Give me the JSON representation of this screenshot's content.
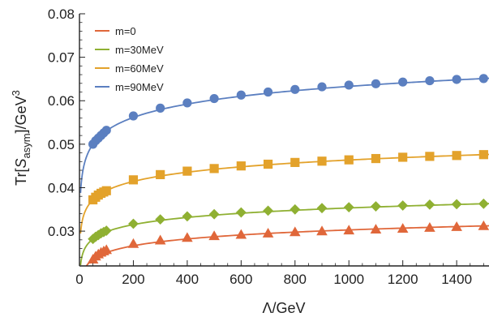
{
  "chart_data": {
    "type": "line",
    "xlabel": "Λ/GeV",
    "ylabel": {
      "pre": "Tr[",
      "sym": "S",
      "sub": "asym",
      "post": "]/GeV",
      "sup": "3"
    },
    "xlim": [
      0,
      1520
    ],
    "ylim": [
      0.022,
      0.08
    ],
    "xticks": [
      0,
      200,
      400,
      600,
      800,
      1000,
      1200,
      1400
    ],
    "yticks": [
      0.03,
      0.04,
      0.05,
      0.06,
      0.07,
      0.08
    ],
    "ytick_labels": [
      "0.03",
      "0.04",
      "0.05",
      "0.06",
      "0.07",
      "0.08"
    ],
    "grid": false,
    "legend_position": "top-left",
    "series": [
      {
        "name": "m=0",
        "color": "#e0673a",
        "marker": "triangle",
        "points": [
          [
            50,
            0.0235
          ],
          [
            60,
            0.0242
          ],
          [
            70,
            0.0247
          ],
          [
            80,
            0.0251
          ],
          [
            90,
            0.0254
          ],
          [
            100,
            0.0257
          ],
          [
            200,
            0.0271
          ],
          [
            300,
            0.0279
          ],
          [
            400,
            0.0285
          ],
          [
            500,
            0.0289
          ],
          [
            600,
            0.0292
          ],
          [
            700,
            0.0295
          ],
          [
            800,
            0.0298
          ],
          [
            900,
            0.03
          ],
          [
            1000,
            0.0302
          ],
          [
            1100,
            0.0304
          ],
          [
            1200,
            0.0306
          ],
          [
            1300,
            0.0308
          ],
          [
            1400,
            0.031
          ],
          [
            1500,
            0.0312
          ]
        ]
      },
      {
        "name": "m=30MeV",
        "color": "#8fb032",
        "marker": "diamond",
        "points": [
          [
            50,
            0.0282
          ],
          [
            60,
            0.0287
          ],
          [
            70,
            0.0291
          ],
          [
            80,
            0.0295
          ],
          [
            90,
            0.0298
          ],
          [
            100,
            0.0301
          ],
          [
            200,
            0.0317
          ],
          [
            300,
            0.0327
          ],
          [
            400,
            0.0334
          ],
          [
            500,
            0.0339
          ],
          [
            600,
            0.0343
          ],
          [
            700,
            0.0347
          ],
          [
            800,
            0.035
          ],
          [
            900,
            0.0353
          ],
          [
            1000,
            0.0355
          ],
          [
            1100,
            0.0357
          ],
          [
            1200,
            0.0359
          ],
          [
            1300,
            0.0361
          ],
          [
            1400,
            0.0362
          ],
          [
            1500,
            0.0363
          ]
        ]
      },
      {
        "name": "m=60MeV",
        "color": "#e3a22b",
        "marker": "square",
        "points": [
          [
            50,
            0.0372
          ],
          [
            60,
            0.0378
          ],
          [
            70,
            0.0383
          ],
          [
            80,
            0.0387
          ],
          [
            90,
            0.039
          ],
          [
            100,
            0.0393
          ],
          [
            200,
            0.0418
          ],
          [
            300,
            0.043
          ],
          [
            400,
            0.0438
          ],
          [
            500,
            0.0444
          ],
          [
            600,
            0.045
          ],
          [
            700,
            0.0454
          ],
          [
            800,
            0.0458
          ],
          [
            900,
            0.0461
          ],
          [
            1000,
            0.0464
          ],
          [
            1100,
            0.0467
          ],
          [
            1200,
            0.047
          ],
          [
            1300,
            0.0472
          ],
          [
            1400,
            0.0474
          ],
          [
            1500,
            0.0476
          ]
        ]
      },
      {
        "name": "m=90MeV",
        "color": "#5b7fc0",
        "marker": "circle",
        "points": [
          [
            50,
            0.05
          ],
          [
            60,
            0.0508
          ],
          [
            70,
            0.0514
          ],
          [
            80,
            0.052
          ],
          [
            90,
            0.0526
          ],
          [
            100,
            0.0532
          ],
          [
            200,
            0.0565
          ],
          [
            300,
            0.0583
          ],
          [
            400,
            0.0595
          ],
          [
            500,
            0.0605
          ],
          [
            600,
            0.0613
          ],
          [
            700,
            0.062
          ],
          [
            800,
            0.0626
          ],
          [
            900,
            0.0632
          ],
          [
            1000,
            0.0636
          ],
          [
            1100,
            0.0639
          ],
          [
            1200,
            0.0643
          ],
          [
            1300,
            0.0646
          ],
          [
            1400,
            0.0649
          ],
          [
            1500,
            0.0651
          ]
        ]
      }
    ]
  }
}
